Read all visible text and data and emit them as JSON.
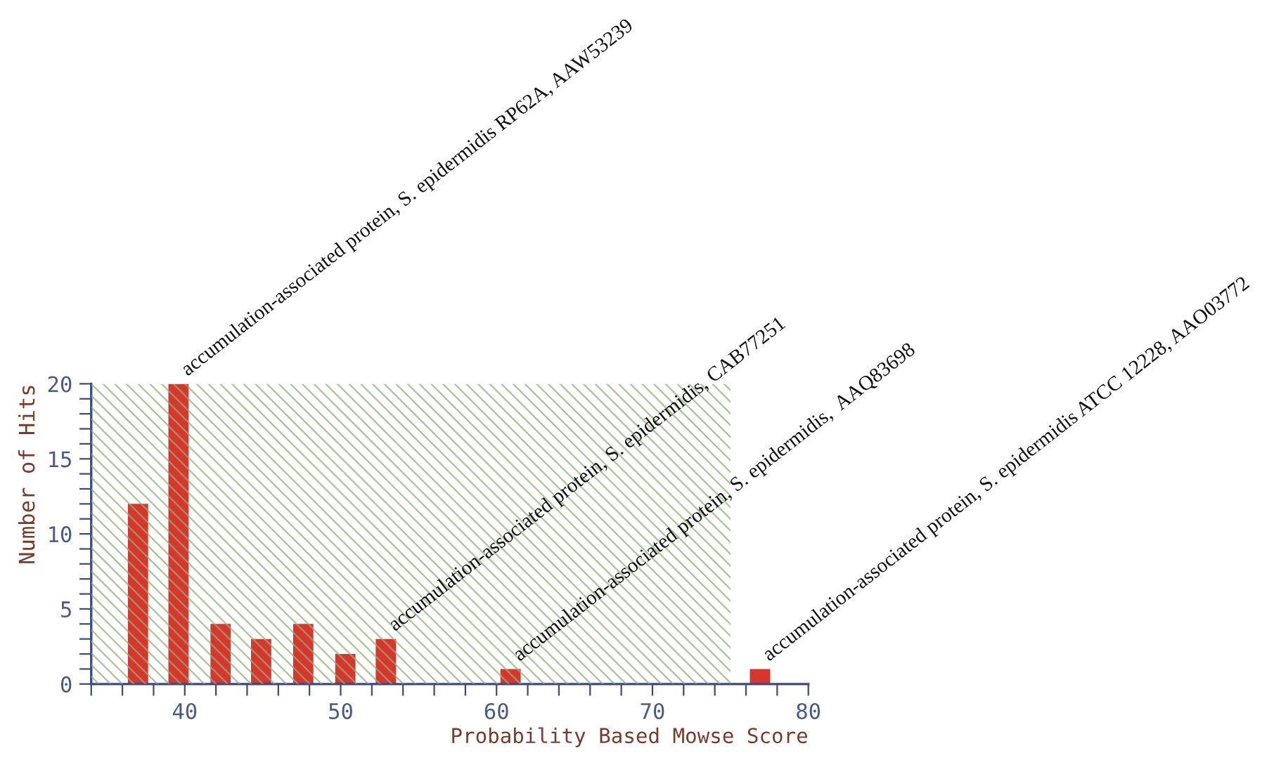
{
  "chart_data": {
    "type": "bar",
    "xlabel": "Probability Based Mowse Score",
    "ylabel": "Number of Hits",
    "x": [
      37,
      39.6,
      42.3,
      44.9,
      47.6,
      50.3,
      52.9,
      60.9,
      76.9
    ],
    "values": [
      12,
      20,
      4,
      3,
      4,
      2,
      3,
      1,
      1
    ],
    "color": "#d8362c",
    "xlim": [
      34,
      80
    ],
    "xticks": [
      {
        "value": 34,
        "label": null
      },
      {
        "value": 36,
        "label": null
      },
      {
        "value": 38,
        "label": null
      },
      40,
      {
        "value": 42,
        "label": null
      },
      {
        "value": 44,
        "label": null
      },
      {
        "value": 46,
        "label": null
      },
      {
        "value": 48,
        "label": null
      },
      50,
      {
        "value": 52,
        "label": null
      },
      {
        "value": 54,
        "label": null
      },
      {
        "value": 56,
        "label": null
      },
      {
        "value": 58,
        "label": null
      },
      60,
      {
        "value": 62,
        "label": null
      },
      {
        "value": 64,
        "label": null
      },
      {
        "value": 66,
        "label": null
      },
      {
        "value": 68,
        "label": null
      },
      70,
      {
        "value": 72,
        "label": null
      },
      {
        "value": 74,
        "label": null
      },
      {
        "value": 76,
        "label": null
      },
      {
        "value": 78,
        "label": null
      },
      80
    ],
    "ylim": [
      0,
      20
    ],
    "yticks": [
      0,
      {
        "value": 1,
        "label": null
      },
      {
        "value": 2,
        "label": null
      },
      {
        "value": 3,
        "label": null
      },
      {
        "value": 4,
        "label": null
      },
      5,
      {
        "value": 6,
        "label": null
      },
      {
        "value": 7,
        "label": null
      },
      {
        "value": 8,
        "label": null
      },
      {
        "value": 9,
        "label": null
      },
      10,
      {
        "value": 11,
        "label": null
      },
      {
        "value": 12,
        "label": null
      },
      {
        "value": 13,
        "label": null
      },
      {
        "value": 14,
        "label": null
      },
      15,
      {
        "value": 16,
        "label": null
      },
      {
        "value": 17,
        "label": null
      },
      {
        "value": 18,
        "label": null
      },
      {
        "value": 19,
        "label": null
      },
      20
    ],
    "grid": false,
    "bands": [
      {
        "axis": "x",
        "from": 34,
        "to": 75,
        "color": "#8fae78"
      }
    ],
    "annotations": [
      {
        "text": "accumulation-associated protein, S. epidermidis RP62A, AAW53239",
        "x": 39.6,
        "y": 20
      },
      {
        "text": "accumulation-associated protein, S. epidermidis, CAB77251",
        "x": 52.9,
        "y": 3
      },
      {
        "text": "accumulation-associated protein, S. epidermidis,  AAQ83698",
        "x": 60.9,
        "y": 1
      },
      {
        "text": "accumulation-associated protein, S. epidermidis ATCC 12228, AAO03772",
        "x": 76.9,
        "y": 1
      }
    ]
  }
}
